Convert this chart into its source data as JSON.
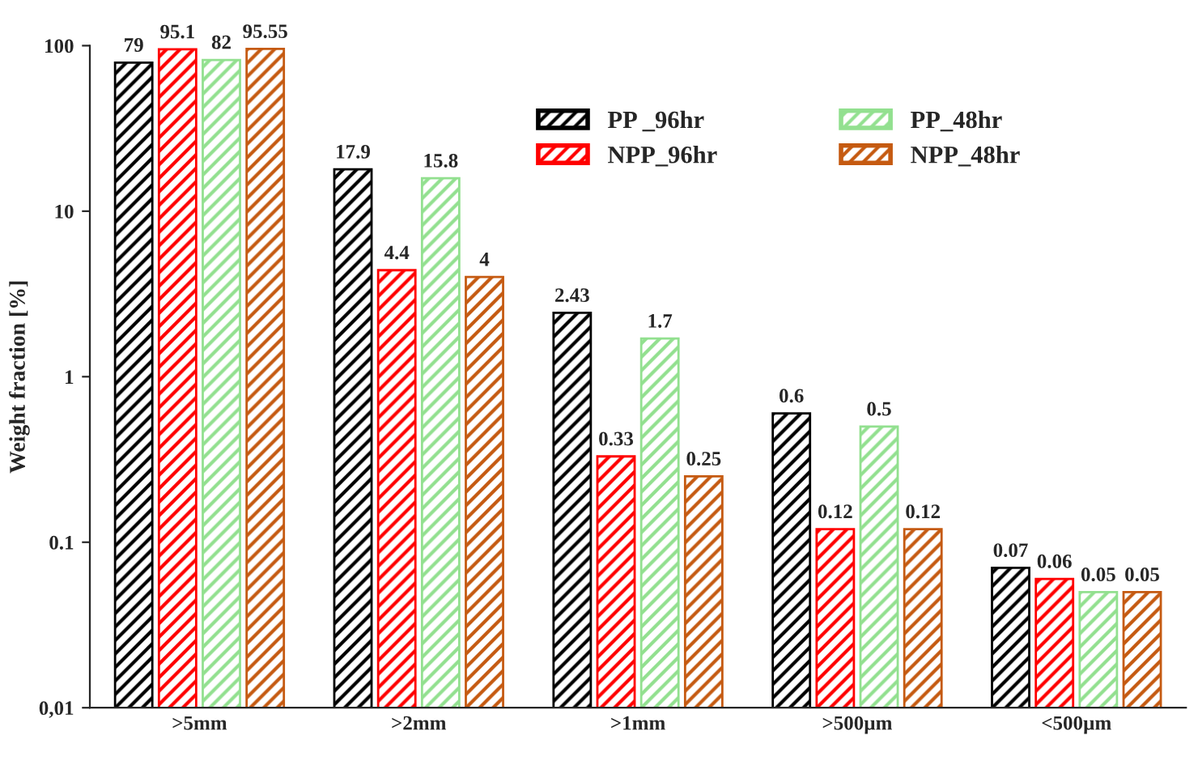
{
  "chart_data": {
    "type": "bar",
    "ylabel": "Weight fraction [%]",
    "categories": [
      ">5mm",
      ">2mm",
      ">1mm",
      ">500µm",
      "<500µm"
    ],
    "series": [
      {
        "name": "PP _96hr",
        "color": "#000000",
        "values": [
          79,
          17.9,
          2.43,
          0.6,
          0.07
        ]
      },
      {
        "name": "NPP_96hr",
        "color": "#ff0000",
        "values": [
          95.1,
          4.4,
          0.33,
          0.12,
          0.06
        ]
      },
      {
        "name": "PP_48hr",
        "color": "#92e08f",
        "values": [
          82,
          15.8,
          1.7,
          0.5,
          0.05
        ]
      },
      {
        "name": "NPP_48hr",
        "color": "#c55a11",
        "values": [
          95.55,
          4,
          0.25,
          0.12,
          0.05
        ]
      }
    ],
    "log": "y",
    "ylim": [
      0.01,
      100
    ],
    "yticks": [
      {
        "value": 0.01,
        "label": "0,01"
      },
      0.1,
      1,
      10,
      100
    ],
    "data_labels": true,
    "legend": "top right",
    "grid": false
  }
}
